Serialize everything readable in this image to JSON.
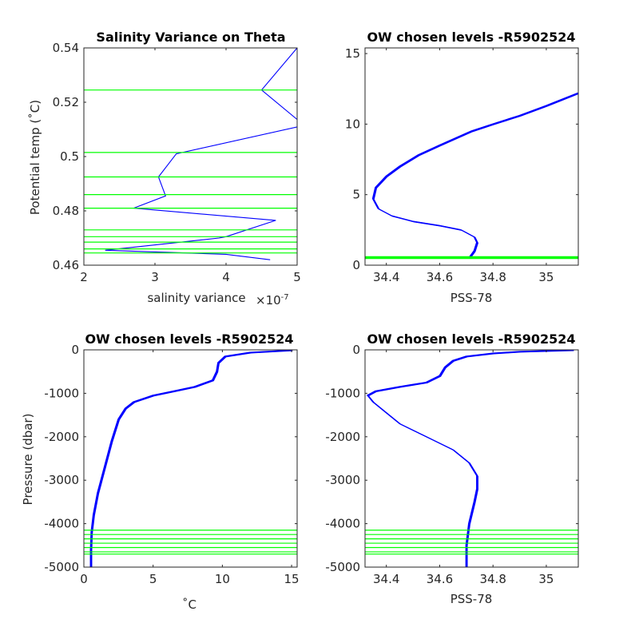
{
  "colors": {
    "profile": "#0000ff",
    "level": "#00ff00",
    "axis": "#262626"
  },
  "chart_data": [
    {
      "type": "line",
      "title": "Salinity Variance on Theta",
      "xlabel": "salinity variance",
      "x_exponent_label": "×10",
      "x_exponent_power": "-7",
      "ylabel": "Potential temp (˚C)",
      "xlim": [
        2,
        5
      ],
      "ylim": [
        0.46,
        0.54
      ],
      "xticks": [
        2,
        3,
        4,
        5
      ],
      "xticklabels": [
        "2",
        "3",
        "4",
        "5"
      ],
      "yticks": [
        0.46,
        0.48,
        0.5,
        0.52,
        0.54
      ],
      "yticklabels": [
        "0.46",
        "0.48",
        "0.5",
        "0.52",
        "0.54"
      ],
      "series": [
        {
          "x": [
            4.62,
            4.0,
            2.3,
            3.9,
            4.0,
            4.7,
            2.7,
            3.15,
            3.05,
            3.3,
            5.1,
            4.5,
            5.0
          ],
          "y": [
            0.462,
            0.464,
            0.4655,
            0.47,
            0.4705,
            0.4765,
            0.481,
            0.4855,
            0.4925,
            0.501,
            0.5115,
            0.5245,
            0.54
          ]
        }
      ],
      "hlines": [
        0.4645,
        0.466,
        0.4685,
        0.4705,
        0.473,
        0.481,
        0.486,
        0.4925,
        0.5015,
        0.5245
      ]
    },
    {
      "type": "line",
      "title": "OW chosen levels -R5902524",
      "xlabel": "PSS-78",
      "ylabel": "",
      "xlim": [
        34.32,
        35.12
      ],
      "ylim": [
        0,
        15.4
      ],
      "xticks": [
        34.4,
        34.6,
        34.8,
        35
      ],
      "xticklabels": [
        "34.4",
        "34.6",
        "34.8",
        "35"
      ],
      "yticks": [
        0,
        5,
        10,
        15
      ],
      "yticklabels": [
        "0",
        "5",
        "10",
        "15"
      ],
      "series": [
        {
          "x": [
            34.71,
            34.73,
            34.74,
            34.73,
            34.68,
            34.6,
            34.5,
            34.42,
            34.37,
            34.35,
            34.36,
            34.4,
            34.45,
            34.52,
            34.6,
            34.66,
            34.72,
            34.8,
            34.9,
            35.0,
            35.12
          ],
          "y": [
            0.5,
            1.0,
            1.6,
            2.0,
            2.5,
            2.8,
            3.1,
            3.5,
            4.0,
            4.7,
            5.5,
            6.3,
            7.0,
            7.8,
            8.5,
            9.0,
            9.5,
            10.0,
            10.6,
            11.3,
            12.2
          ]
        }
      ],
      "hlines": [
        0.47,
        0.5,
        0.53,
        0.56,
        0.6
      ]
    },
    {
      "type": "line",
      "title": "OW chosen levels -R5902524",
      "xlabel": "˚C",
      "ylabel": "Pressure (dbar)",
      "xlim": [
        0,
        15.4
      ],
      "ylim": [
        -5000,
        0
      ],
      "xticks": [
        0,
        5,
        10,
        15
      ],
      "xticklabels": [
        "0",
        "5",
        "10",
        "15"
      ],
      "yticks": [
        -5000,
        -4000,
        -3000,
        -2000,
        -1000,
        0
      ],
      "yticklabels": [
        "-5000",
        "-4000",
        "-3000",
        "-2000",
        "-1000",
        "0"
      ],
      "series": [
        {
          "x": [
            0.5,
            0.5,
            0.55,
            0.7,
            1.0,
            1.5,
            2.0,
            2.5,
            3.0,
            3.6,
            5.0,
            6.5,
            8.0,
            9.3,
            9.6,
            9.7,
            10.2,
            12.0,
            15.0
          ],
          "y": [
            -5000,
            -4600,
            -4200,
            -3800,
            -3300,
            -2700,
            -2100,
            -1600,
            -1350,
            -1200,
            -1050,
            -950,
            -850,
            -700,
            -500,
            -300,
            -150,
            -60,
            -10
          ]
        }
      ],
      "hlines": [
        -4150,
        -4250,
        -4350,
        -4450,
        -4550,
        -4650,
        -4700
      ]
    },
    {
      "type": "line",
      "title": "OW chosen levels -R5902524",
      "xlabel": "PSS-78",
      "ylabel": "",
      "xlim": [
        34.32,
        35.12
      ],
      "ylim": [
        -5000,
        0
      ],
      "xticks": [
        34.4,
        34.6,
        34.8,
        35
      ],
      "xticklabels": [
        "34.4",
        "34.6",
        "34.8",
        "35"
      ],
      "yticks": [
        -5000,
        -4000,
        -3000,
        -2000,
        -1000,
        0
      ],
      "yticklabels": [
        "-5000",
        "-4000",
        "-3000",
        "-2000",
        "-1000",
        "0"
      ],
      "series": [
        {
          "x": [
            34.7,
            34.7,
            34.71,
            34.73,
            34.74,
            34.74,
            34.71,
            34.65,
            34.55,
            34.45,
            34.39,
            34.35,
            34.33,
            34.36,
            34.45,
            34.55,
            34.6,
            34.62,
            34.65,
            34.7,
            34.8,
            34.9,
            35.1
          ],
          "y": [
            -5000,
            -4500,
            -4000,
            -3500,
            -3200,
            -2900,
            -2600,
            -2300,
            -2000,
            -1700,
            -1400,
            -1200,
            -1050,
            -950,
            -850,
            -750,
            -600,
            -400,
            -250,
            -150,
            -80,
            -40,
            -5
          ]
        }
      ],
      "hlines": [
        -4150,
        -4250,
        -4350,
        -4450,
        -4550,
        -4650,
        -4700
      ]
    }
  ]
}
